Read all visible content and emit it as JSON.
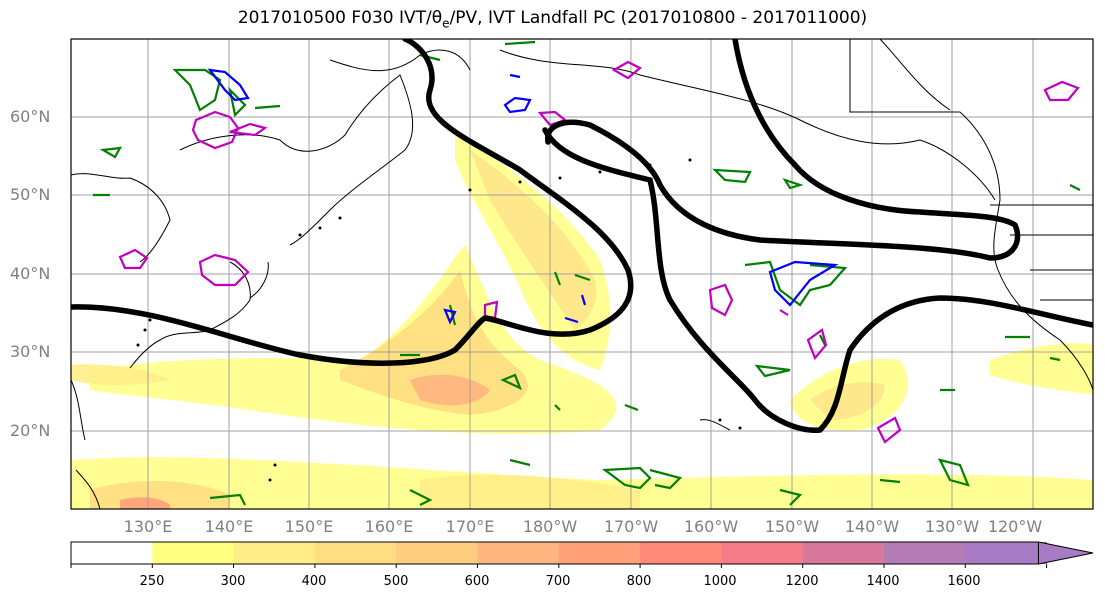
{
  "title": "2017010500 F030 IVT/θ",
  "title_sub": "e",
  "title_rest": "/PV, IVT Landfall PC (2017010800 - 2017011000)",
  "latitude_labels": [
    "60°N",
    "50°N",
    "40°N",
    "30°N",
    "20°N"
  ],
  "longitude_labels": [
    "130°E",
    "140°E",
    "150°E",
    "160°E",
    "170°E",
    "180°W",
    "170°W",
    "160°W",
    "150°W",
    "140°W",
    "130°W",
    "120°W"
  ],
  "colorbar": {
    "labels": [
      "250",
      "300",
      "400",
      "500",
      "600",
      "700",
      "800",
      "1000",
      "1200",
      "1400",
      "1600"
    ],
    "colors": [
      "#ffffff",
      "#ffff7f",
      "#ffee88",
      "#ffdd80",
      "#ffcc80",
      "#ffb57f",
      "#ffa07a",
      "#ff8a7a",
      "#f47c88",
      "#d8789a",
      "#b37cb5",
      "#a87cc4"
    ]
  },
  "colors": {
    "ivt_contour": "#000000",
    "theta_e": "#008000",
    "pv_blue": "#0000ff",
    "pv_magenta": "#c000c0",
    "coast": "#000000",
    "grid": "#a0a0a0"
  }
}
